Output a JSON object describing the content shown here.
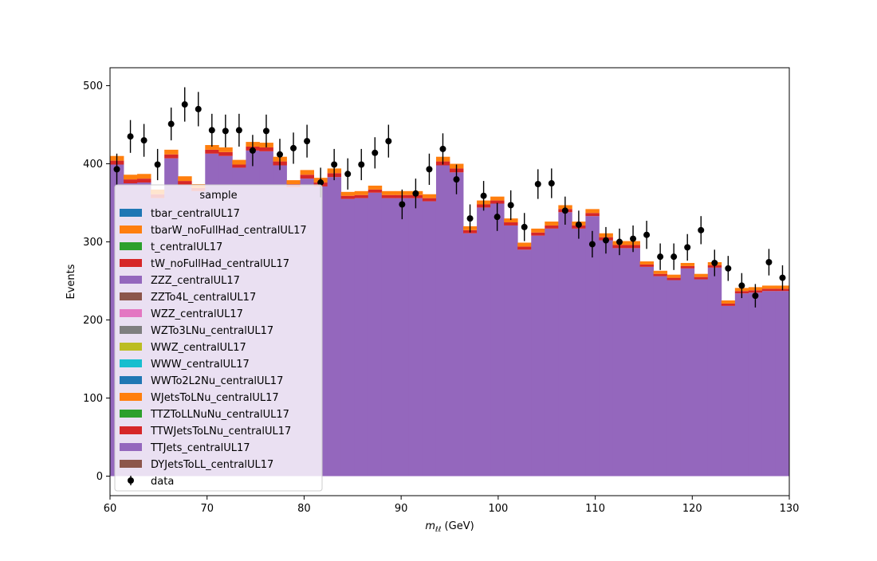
{
  "chart_data": {
    "type": "area",
    "title": "",
    "xlabel": "m_ℓℓ (GeV)",
    "xlabel_main": "m",
    "xlabel_sub": "ℓℓ",
    "xlabel_unit": " (GeV)",
    "ylabel": "Events",
    "xlim": [
      60,
      130
    ],
    "ylim": [
      -25,
      523
    ],
    "xticks": [
      60,
      70,
      80,
      90,
      100,
      110,
      120,
      130
    ],
    "yticks": [
      0,
      100,
      200,
      300,
      400,
      500
    ],
    "grid": false,
    "legend": {
      "title": "sample",
      "placement": "upper-left",
      "entries": [
        {
          "label": "tbar_centralUL17",
          "color": "#1f77b4"
        },
        {
          "label": "tbarW_noFullHad_centralUL17",
          "color": "#ff7f0e"
        },
        {
          "label": "t_centralUL17",
          "color": "#2ca02c"
        },
        {
          "label": "tW_noFullHad_centralUL17",
          "color": "#d62728"
        },
        {
          "label": "ZZZ_centralUL17",
          "color": "#9467bd"
        },
        {
          "label": "ZZTo4L_centralUL17",
          "color": "#8c564b"
        },
        {
          "label": "WZZ_centralUL17",
          "color": "#e377c2"
        },
        {
          "label": "WZTo3LNu_centralUL17",
          "color": "#7f7f7f"
        },
        {
          "label": "WWZ_centralUL17",
          "color": "#bcbd22"
        },
        {
          "label": "WWW_centralUL17",
          "color": "#17becf"
        },
        {
          "label": "WWTo2L2Nu_centralUL17",
          "color": "#1f77b4"
        },
        {
          "label": "WJetsToLNu_centralUL17",
          "color": "#ff7f0e"
        },
        {
          "label": "TTZToLLNuNu_centralUL17",
          "color": "#2ca02c"
        },
        {
          "label": "TTWJetsToLNu_centralUL17",
          "color": "#d62728"
        },
        {
          "label": "TTJets_centralUL17",
          "color": "#9467bd"
        },
        {
          "label": "DYJetsToLL_centralUL17",
          "color": "#8c564b"
        },
        {
          "label": "data",
          "color": "#000000",
          "marker": "errorbar"
        }
      ]
    },
    "bin_edges": [
      60.0,
      61.4,
      62.8,
      64.2,
      65.6,
      67.0,
      68.4,
      69.8,
      71.2,
      72.6,
      74.0,
      75.4,
      76.8,
      78.2,
      79.6,
      81.0,
      82.4,
      83.8,
      85.2,
      86.6,
      88.0,
      89.4,
      90.8,
      92.2,
      93.6,
      95.0,
      96.4,
      97.8,
      99.2,
      100.6,
      102.0,
      103.4,
      104.8,
      106.2,
      107.6,
      109.0,
      110.4,
      111.8,
      113.2,
      114.6,
      116.0,
      117.4,
      118.8,
      120.2,
      121.6,
      123.0,
      124.4,
      125.8,
      127.2,
      128.6,
      130.0
    ],
    "series": [
      {
        "name": "TTJets_centralUL17",
        "color": "#9467bd",
        "values": [
          399,
          375,
          376,
          356,
          407,
          373,
          365,
          413,
          410,
          395,
          417,
          416,
          398,
          370,
          381,
          371,
          383,
          355,
          356,
          363,
          356,
          356,
          356,
          352,
          398,
          389,
          311,
          344,
          349,
          321,
          290,
          308,
          317,
          338,
          317,
          333,
          302,
          292,
          292,
          268,
          256,
          251,
          266,
          252,
          267,
          218,
          234,
          235,
          237,
          237
        ]
      },
      {
        "name": "TTWJetsToLNu_centralUL17",
        "color": "#d62728",
        "values": [
          5,
          5,
          5,
          5,
          5,
          5,
          4,
          5,
          5,
          4,
          5,
          5,
          5,
          4,
          5,
          5,
          5,
          4,
          4,
          4,
          4,
          4,
          4,
          4,
          5,
          5,
          4,
          4,
          4,
          4,
          4,
          4,
          4,
          4,
          4,
          4,
          4,
          4,
          4,
          3,
          3,
          3,
          3,
          3,
          3,
          3,
          3,
          3,
          3,
          3
        ]
      },
      {
        "name": "tbarW_noFullHad_centralUL17",
        "color": "#ff7f0e",
        "values": [
          6,
          6,
          6,
          6,
          6,
          6,
          5,
          6,
          6,
          6,
          6,
          6,
          6,
          5,
          6,
          6,
          6,
          5,
          5,
          5,
          5,
          5,
          5,
          5,
          6,
          6,
          5,
          5,
          5,
          5,
          5,
          5,
          5,
          5,
          5,
          5,
          5,
          5,
          5,
          4,
          4,
          4,
          4,
          4,
          4,
          4,
          4,
          4,
          4,
          4
        ]
      }
    ],
    "data_points": {
      "name": "data",
      "x": [
        60.7,
        62.1,
        63.5,
        64.9,
        66.3,
        67.7,
        69.1,
        70.5,
        71.9,
        73.3,
        74.7,
        76.1,
        77.5,
        78.9,
        80.3,
        81.7,
        83.1,
        84.5,
        85.9,
        87.3,
        88.7,
        90.1,
        91.5,
        92.9,
        94.3,
        95.7,
        97.1,
        98.5,
        99.9,
        101.3,
        102.7,
        104.1,
        105.5,
        106.9,
        108.3,
        109.7,
        111.1,
        112.5,
        113.9,
        115.3,
        116.7,
        118.1,
        119.5,
        120.9,
        122.3,
        123.7,
        125.1,
        126.5,
        127.9,
        129.3
      ],
      "y": [
        393,
        435,
        430,
        399,
        451,
        476,
        470,
        443,
        442,
        443,
        417,
        442,
        412,
        420,
        429,
        376,
        399,
        387,
        399,
        414,
        429,
        348,
        362,
        393,
        419,
        380,
        330,
        359,
        332,
        347,
        319,
        374,
        375,
        340,
        322,
        297,
        302,
        300,
        304,
        309,
        281,
        281,
        293,
        315,
        273,
        266,
        244,
        231,
        274,
        254
      ],
      "yerr": [
        20,
        21,
        21,
        20,
        21,
        22,
        22,
        21,
        21,
        21,
        20,
        21,
        20,
        20,
        21,
        19,
        20,
        20,
        20,
        20,
        21,
        19,
        19,
        20,
        20,
        19,
        18,
        19,
        18,
        19,
        18,
        19,
        19,
        18,
        18,
        17,
        17,
        17,
        17,
        18,
        17,
        17,
        17,
        18,
        17,
        16,
        16,
        15,
        17,
        16
      ]
    }
  }
}
